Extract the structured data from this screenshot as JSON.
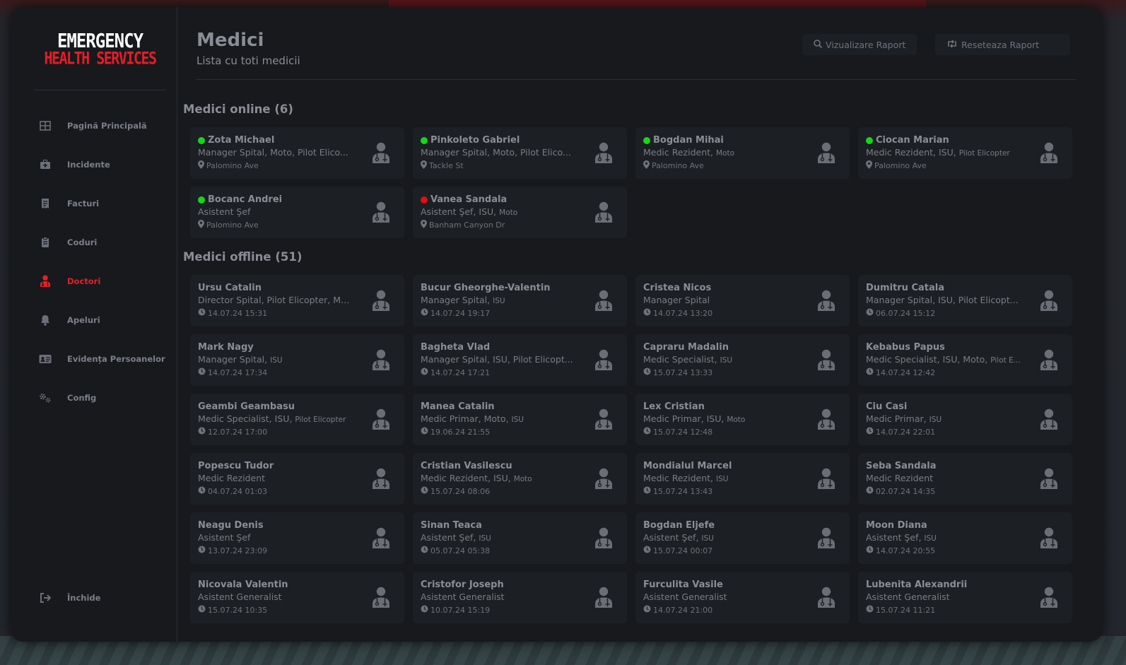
{
  "logo": {
    "line1": "EMERGENCY",
    "line2": "HEALTH SERVICES"
  },
  "sidebar": {
    "items": [
      {
        "label": "Pagină Principală",
        "icon": "grid-icon",
        "active": false
      },
      {
        "label": "Incidente",
        "icon": "medkit-icon",
        "active": false
      },
      {
        "label": "Facturi",
        "icon": "receipt-icon",
        "active": false
      },
      {
        "label": "Coduri",
        "icon": "clipboard-icon",
        "active": false
      },
      {
        "label": "Doctori",
        "icon": "doctor-icon",
        "active": true
      },
      {
        "label": "Apeluri",
        "icon": "bell-icon",
        "active": false
      },
      {
        "label": "Evidența Persoanelor",
        "icon": "id-card-icon",
        "active": false
      },
      {
        "label": "Config",
        "icon": "gears-icon",
        "active": false
      }
    ],
    "close_label": "Închide"
  },
  "header": {
    "title": "Medici",
    "subtitle": "Lista cu toti medicii",
    "btn_view": "Vizualizare Raport",
    "btn_reset": "Reseteaza Raport"
  },
  "online": {
    "title": "Medici online (6)",
    "cards": [
      {
        "name": "Zota Michael",
        "role": "Manager Spital, Moto, Pilot Elico...",
        "loc": "Palomino Ave",
        "status": "green"
      },
      {
        "name": "Pinkoleto Gabriel",
        "role": "Manager Spital, Moto, Pilot Elico...",
        "loc": "Tackle St",
        "status": "green"
      },
      {
        "name": "Bogdan Mihai",
        "role": "Medic Rezident,",
        "role_small": "Moto",
        "loc": "Palomino Ave",
        "status": "green"
      },
      {
        "name": "Ciocan Marian",
        "role": "Medic Rezident, ISU,",
        "role_small": "Pilot Elicopter",
        "loc": "Palomino Ave",
        "status": "green"
      },
      {
        "name": "Bocanc Andrei",
        "role": "Asistent Şef",
        "loc": "Palomino Ave",
        "status": "green"
      },
      {
        "name": "Vanea Sandala",
        "role": "Asistent Şef, ISU,",
        "role_small": "Moto",
        "loc": "Banham Canyon Dr",
        "status": "red"
      }
    ]
  },
  "offline": {
    "title": "Medici offline (51)",
    "cards": [
      {
        "name": "Ursu Catalin",
        "role": "Director Spital, Pilot Elicopter, Mo...",
        "time": "14.07.24 15:31"
      },
      {
        "name": "Bucur Gheorghe-Valentin",
        "role": "Manager Spital,",
        "role_small": "ISU",
        "time": "14.07.24 19:17"
      },
      {
        "name": "Cristea Nicos",
        "role": "Manager Spital",
        "time": "14.07.24 13:20"
      },
      {
        "name": "Dumitru Catala",
        "role": "Manager Spital, ISU, Pilot Elicopt...",
        "time": "06.07.24 15:12"
      },
      {
        "name": "Mark Nagy",
        "role": "Manager Spital,",
        "role_small": "ISU",
        "time": "14.07.24 17:34"
      },
      {
        "name": "Bagheta Vlad",
        "role": "Manager Spital, ISU, Pilot Elicopt...",
        "time": "14.07.24 17:21"
      },
      {
        "name": "Capraru Madalin",
        "role": "Medic Specialist,",
        "role_small": "ISU",
        "time": "15.07.24 13:33"
      },
      {
        "name": "Kebabus Papus",
        "role": "Medic Specialist, ISU, Moto,",
        "role_small": "Pilot E...",
        "time": "14.07.24 12:42"
      },
      {
        "name": "Geambi Geambasu",
        "role": "Medic Specialist, ISU,",
        "role_small": "Pilot Elicopter",
        "time": "12.07.24 17:00"
      },
      {
        "name": "Manea Catalin",
        "role": "Medic Primar, Moto,",
        "role_small": "ISU",
        "time": "19.06.24 21:55"
      },
      {
        "name": "Lex Cristian",
        "role": "Medic Primar, ISU,",
        "role_small": "Moto",
        "time": "15.07.24 12:48"
      },
      {
        "name": "Ciu Casi",
        "role": "Medic Primar,",
        "role_small": "ISU",
        "time": "14.07.24 22:01"
      },
      {
        "name": "Popescu Tudor",
        "role": "Medic Rezident",
        "time": "04.07.24 01:03"
      },
      {
        "name": "Cristian Vasilescu",
        "role": "Medic Rezident, ISU,",
        "role_small": "Moto",
        "time": "15.07.24 08:06"
      },
      {
        "name": "Mondialul Marcel",
        "role": "Medic Rezident,",
        "role_small": "ISU",
        "time": "15.07.24 13:43"
      },
      {
        "name": "Seba Sandala",
        "role": "Medic Rezident",
        "time": "02.07.24 14:35"
      },
      {
        "name": "Neagu Denis",
        "role": "Asistent Şef",
        "time": "13.07.24 23:09"
      },
      {
        "name": "Sinan Teaca",
        "role": "Asistent Şef,",
        "role_small": "ISU",
        "time": "05.07.24 05:38"
      },
      {
        "name": "Bogdan Eljefe",
        "role": "Asistent Şef,",
        "role_small": "ISU",
        "time": "15.07.24 00:07"
      },
      {
        "name": "Moon Diana",
        "role": "Asistent Şef,",
        "role_small": "ISU",
        "time": "14.07.24 20:55"
      },
      {
        "name": "Nicovala Valentin",
        "role": "Asistent Generalist",
        "time": "15.07.24 10:35"
      },
      {
        "name": "Cristofor Joseph",
        "role": "Asistent Generalist",
        "time": "10.07.24 15:19"
      },
      {
        "name": "Furculita Vasile",
        "role": "Asistent Generalist",
        "time": "14.07.24 21:00"
      },
      {
        "name": "Lubenita Alexandrii",
        "role": "Asistent Generalist",
        "time": "15.07.24 11:21"
      }
    ]
  },
  "colors": {
    "online": "#17d617",
    "busy": "#e01010",
    "accent": "#e32028"
  }
}
